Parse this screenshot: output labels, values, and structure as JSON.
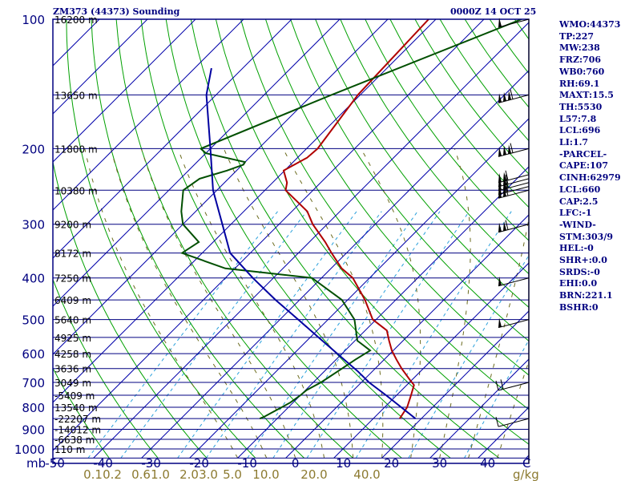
{
  "header": {
    "station": "ZM373 (44373) Sounding",
    "time": "0000Z 14 OCT 25"
  },
  "colors": {
    "frame": "#000080",
    "isobar": "#000080",
    "isotherm": "#0000aa",
    "dry_adiabat": "#00a000",
    "moist_adiabat": "#6b6b1e",
    "mixing_ratio": "#2aa0dc",
    "temperature": "#b00000",
    "dewpoint": "#004f00",
    "parcel": "#0000a0",
    "label_blue": "#000080",
    "label_olive": "#8c7a30"
  },
  "stats": [
    "WMO:44373",
    "TP:227",
    "MW:238",
    "FRZ:706",
    "WB0:760",
    "RH:69.1",
    "MAXT:15.5",
    "TH:5530",
    "L57:7.8",
    "LCL:696",
    "LI:1.7",
    "-PARCEL-",
    "CAPE:107",
    "CINH:62979",
    "LCL:660",
    "CAP:2.5",
    "LFC:-1",
    "-WIND-",
    "STM:303/9",
    "HEL:-0",
    "SHR+:0.0",
    "SRDS:-0",
    "EHI:0.0",
    "BRN:221.1",
    "BSHR:0"
  ],
  "chart_data": {
    "type": "line",
    "subtype": "skew-t log-p",
    "title": "ZM373 (44373) Sounding",
    "pressure_axis_unit": "mb",
    "temperature_axis_unit": "C",
    "mixing_ratio_unit": "g/kg",
    "xlim": [
      -50,
      50
    ],
    "ylim": [
      1050,
      100
    ],
    "pressure_labels": [
      "100",
      "200",
      "300",
      "400",
      "500",
      "600",
      "700",
      "800",
      "900",
      "1000"
    ],
    "temperature_ticks": [
      "-50",
      "-40",
      "-30",
      "-20",
      "-10",
      "0",
      "10",
      "20",
      "30",
      "40"
    ],
    "temperature_values": [
      -50,
      -40,
      -30,
      -20,
      -10,
      0,
      10,
      20,
      30,
      40
    ],
    "mixing_ratio_labels": [
      "0.1",
      "0.2",
      "0.6",
      "1.0",
      "2.0",
      "3.0",
      "5.0",
      "10.0",
      "20.0",
      "40.0"
    ],
    "mixing_ratio_values": [
      0.1,
      0.2,
      0.6,
      1.0,
      2.0,
      3.0,
      5.0,
      10.0,
      20.0,
      40.0
    ],
    "mixing_ratio_label_x_temps": [
      -44,
      -40,
      -34,
      -30,
      -24,
      -20,
      -15,
      -8,
      2,
      13
    ],
    "height_levels": [
      {
        "p": 100,
        "label": "16200 m"
      },
      {
        "p": 150,
        "label": "13650 m"
      },
      {
        "p": 200,
        "label": "11800 m"
      },
      {
        "p": 250,
        "label": "10380 m"
      },
      {
        "p": 300,
        "label": "9200 m"
      },
      {
        "p": 350,
        "label": "8172 m"
      },
      {
        "p": 400,
        "label": "7250 m"
      },
      {
        "p": 450,
        "label": "6409 m"
      },
      {
        "p": 500,
        "label": "5640 m"
      },
      {
        "p": 550,
        "label": "4925 m"
      },
      {
        "p": 600,
        "label": "4258 m"
      },
      {
        "p": 650,
        "label": "3636 m"
      },
      {
        "p": 700,
        "label": "3049 m"
      },
      {
        "p": 750,
        "label": "-5409 m"
      },
      {
        "p": 800,
        "label": "13540 m"
      },
      {
        "p": 850,
        "label": "-22207 m"
      },
      {
        "p": 900,
        "label": "-14012 m"
      },
      {
        "p": 950,
        "label": "-6638 m"
      },
      {
        "p": 1000,
        "label": "110 m"
      }
    ],
    "series": [
      {
        "name": "temperature",
        "points": [
          [
            100,
            -61.5
          ],
          [
            150,
            -60.5
          ],
          [
            200,
            -57.7
          ],
          [
            210,
            -58
          ],
          [
            225,
            -60.2
          ],
          [
            240,
            -57
          ],
          [
            250,
            -55.7
          ],
          [
            280,
            -46.8
          ],
          [
            300,
            -43
          ],
          [
            330,
            -36.7
          ],
          [
            350,
            -33.1
          ],
          [
            380,
            -27.8
          ],
          [
            400,
            -23.5
          ],
          [
            450,
            -16.4
          ],
          [
            500,
            -10.7
          ],
          [
            530,
            -5.5
          ],
          [
            560,
            -2.9
          ],
          [
            590,
            -0.3
          ],
          [
            620,
            2.6
          ],
          [
            650,
            5.5
          ],
          [
            690,
            9.5
          ],
          [
            710,
            11.5
          ],
          [
            750,
            13
          ],
          [
            800,
            14.7
          ],
          [
            850,
            15.5
          ]
        ]
      },
      {
        "name": "dewpoint",
        "points": [
          [
            100,
            -42.2
          ],
          [
            150,
            -66
          ],
          [
            200,
            -82
          ],
          [
            205,
            -80
          ],
          [
            215,
            -70
          ],
          [
            218,
            -69.8
          ],
          [
            225,
            -72
          ],
          [
            235,
            -76
          ],
          [
            250,
            -77
          ],
          [
            280,
            -73
          ],
          [
            300,
            -70
          ],
          [
            330,
            -63
          ],
          [
            350,
            -64.2
          ],
          [
            380,
            -52
          ],
          [
            400,
            -32
          ],
          [
            450,
            -21.2
          ],
          [
            500,
            -14.5
          ],
          [
            560,
            -9.5
          ],
          [
            590,
            -4.8
          ],
          [
            620,
            -6
          ],
          [
            650,
            -6.9
          ],
          [
            700,
            -8.4
          ],
          [
            730,
            -9.8
          ],
          [
            750,
            -10
          ],
          [
            780,
            -10.6
          ],
          [
            810,
            -11.8
          ],
          [
            840,
            -13
          ],
          [
            850,
            -13.6
          ]
        ]
      },
      {
        "name": "parcel",
        "points": [
          [
            130,
            -96.5
          ],
          [
            150,
            -92
          ],
          [
            200,
            -80
          ],
          [
            250,
            -70.8
          ],
          [
            300,
            -61.8
          ],
          [
            350,
            -54.2
          ],
          [
            400,
            -44.3
          ],
          [
            450,
            -35
          ],
          [
            500,
            -26.2
          ],
          [
            550,
            -18.3
          ],
          [
            600,
            -11
          ],
          [
            660,
            -3
          ],
          [
            700,
            1.6
          ],
          [
            750,
            7.8
          ],
          [
            800,
            13.5
          ],
          [
            850,
            18.8
          ]
        ]
      }
    ],
    "wind_barb_levels": [
      {
        "p": 100,
        "flags": 1,
        "barbs": 0
      },
      {
        "p": 150,
        "flags": 3,
        "barbs": 1
      },
      {
        "p": 200,
        "flags": 3,
        "barbs": 1
      },
      {
        "p": 230,
        "flags": 2,
        "barbs": 1
      },
      {
        "p": 235,
        "flags": 2,
        "barbs": 1
      },
      {
        "p": 240,
        "flags": 2,
        "barbs": 1
      },
      {
        "p": 245,
        "flags": 2,
        "barbs": 1
      },
      {
        "p": 250,
        "flags": 2,
        "barbs": 1
      },
      {
        "p": 300,
        "flags": 2,
        "barbs": 1
      },
      {
        "p": 400,
        "flags": 1,
        "barbs": 0
      },
      {
        "p": 500,
        "flags": 1,
        "barbs": 0
      },
      {
        "p": 700,
        "flags": 0,
        "barbs": 2
      },
      {
        "p": 850,
        "flags": 0,
        "barbs": 1
      }
    ]
  }
}
